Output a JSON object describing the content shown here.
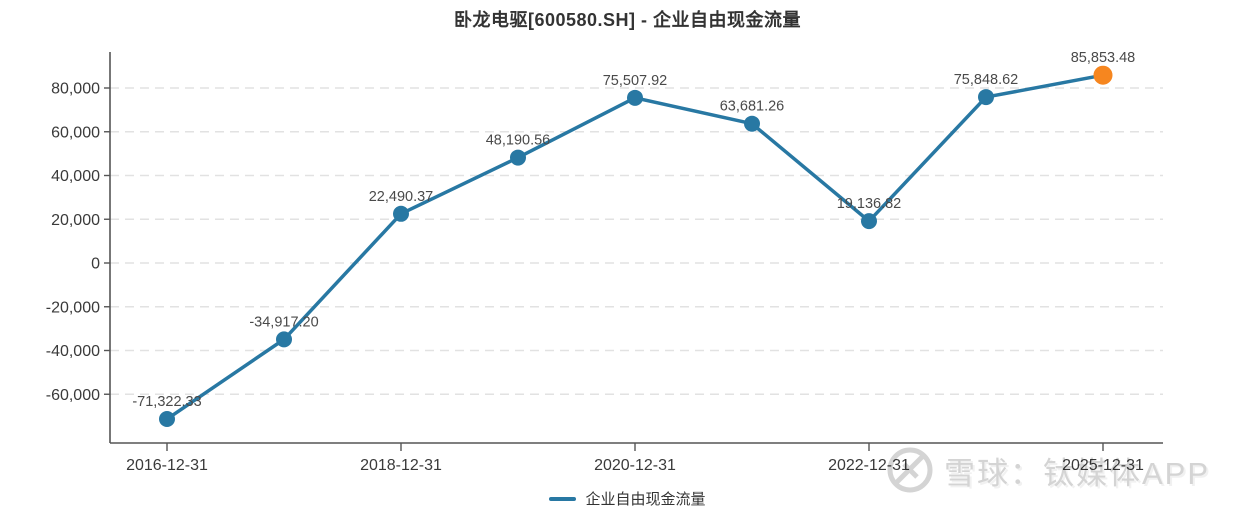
{
  "title": "卧龙电驱[600580.SH] - 企业自由现金流量",
  "legend": {
    "label": "企业自由现金流量"
  },
  "watermark": {
    "source_label": "雪球：钛媒体APP",
    "logo": "xueqiu-circle-logo"
  },
  "colors": {
    "line": "#2878a3",
    "highlight_point": "#f6861f",
    "grid": "#e2e2e2",
    "axis": "#555555",
    "point_label_text": "#4a4a4a",
    "axis_text": "#3a3a3a",
    "title_text": "#333333",
    "watermark_text": "#d4d4d4"
  },
  "chart_data": {
    "type": "line",
    "title": "卧龙电驱[600580.SH] - 企业自由现金流量",
    "series": [
      {
        "name": "企业自由现金流量",
        "values": [
          -71322.33,
          -34917.2,
          22490.37,
          48190.56,
          75507.92,
          63681.26,
          19136.82,
          75848.62,
          85853.48
        ],
        "point_labels": [
          "-71,322.33",
          "-34,917.20",
          "22,490.37",
          "48,190.56",
          "75,507.92",
          "63,681.26",
          "19,136.82",
          "75,848.62",
          "85,853.48"
        ],
        "color": "#2878a3",
        "last_point_highlighted": true,
        "last_point_color": "#f6861f"
      }
    ],
    "num_points": 9,
    "x_tick_labels": [
      "2016-12-31",
      "2018-12-31",
      "2020-12-31",
      "2022-12-31",
      "2025-12-31"
    ],
    "x_tick_point_indices": [
      0,
      2,
      4,
      6,
      8
    ],
    "y_tick_values": [
      80000,
      60000,
      40000,
      20000,
      0,
      -20000,
      -40000,
      -60000
    ],
    "y_tick_labels": [
      "80,000",
      "60,000",
      "40,000",
      "20,000",
      "0",
      "-20,000",
      "-40,000",
      "-60,000"
    ],
    "ylim": [
      -82000,
      96000
    ],
    "grid": "horizontal-dashed",
    "legend_position": "bottom-center"
  }
}
